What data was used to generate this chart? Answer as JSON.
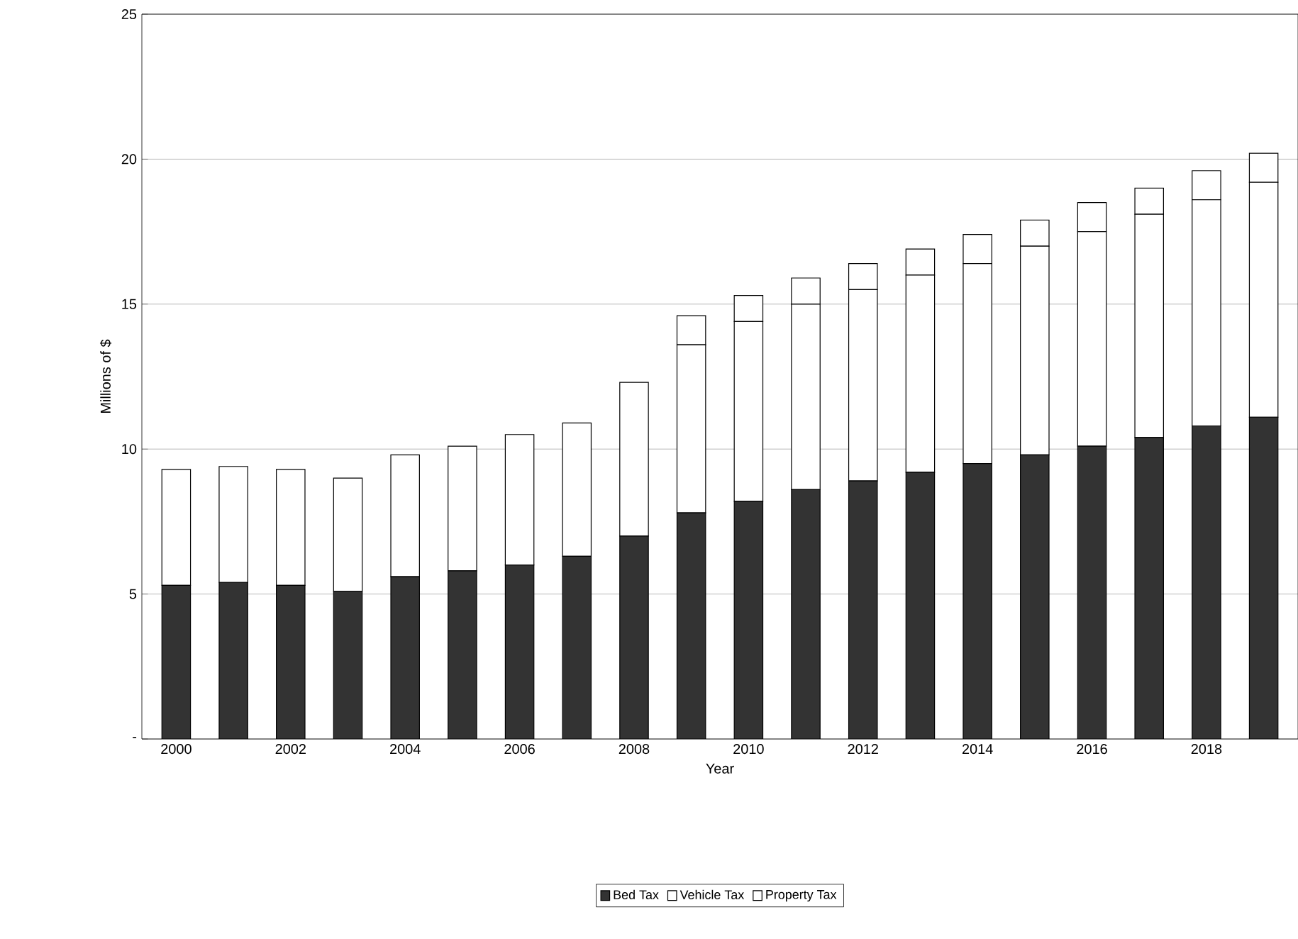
{
  "chart_data": {
    "type": "bar",
    "stacked": true,
    "xlabel": "Year",
    "ylabel": "Millions of $",
    "categories": [
      "2000",
      null,
      "2002",
      null,
      "2004",
      null,
      "2006",
      null,
      "2008",
      null,
      "2010",
      null,
      "2012",
      null,
      "2014",
      null,
      "2016",
      null,
      "2018",
      null
    ],
    "series": [
      {
        "name": "Bed Tax",
        "color": "#333333",
        "values": [
          5.3,
          5.4,
          5.3,
          5.1,
          5.6,
          5.8,
          6.0,
          6.3,
          7.0,
          7.8,
          8.2,
          8.6,
          8.9,
          9.2,
          9.5,
          9.8,
          10.1,
          10.4,
          10.8,
          11.1
        ]
      },
      {
        "name": "Vehicle Tax",
        "color": "#ffffff",
        "values": [
          4.0,
          4.0,
          4.0,
          3.9,
          4.2,
          4.3,
          4.5,
          4.6,
          5.3,
          5.8,
          6.2,
          6.4,
          6.6,
          6.8,
          6.9,
          7.2,
          7.4,
          7.7,
          7.8,
          8.1
        ]
      },
      {
        "name": "Property Tax",
        "color": "#ffffff",
        "values": [
          null,
          null,
          null,
          null,
          null,
          null,
          null,
          null,
          null,
          1.0,
          0.9,
          0.9,
          0.9,
          0.9,
          1.0,
          0.9,
          1.0,
          0.9,
          1.0,
          1.0
        ]
      }
    ],
    "ylim": [
      0,
      25
    ],
    "yticks": [
      {
        "value": 0,
        "label": "-"
      },
      5,
      10,
      15,
      20,
      25
    ],
    "grid": "y",
    "legend": "bottom"
  }
}
